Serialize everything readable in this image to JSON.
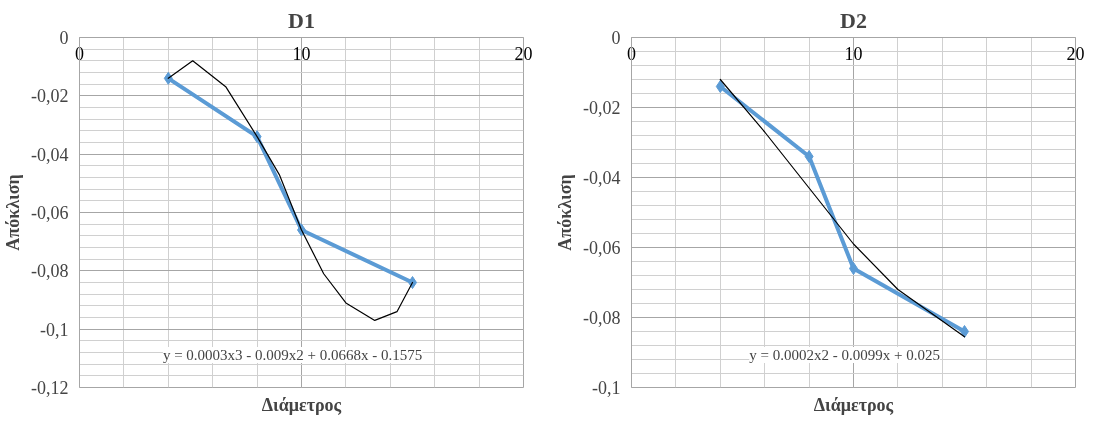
{
  "chart_data": [
    {
      "type": "line",
      "title": "D1",
      "xlabel": "Διάμετρος",
      "ylabel": "Απόκλιση",
      "xlim": [
        0,
        20
      ],
      "xticks": [
        0,
        10,
        20
      ],
      "ylim": [
        -0.12,
        0
      ],
      "yticks": [
        0,
        {
          "value": -0.02,
          "label": "-0,02"
        },
        {
          "value": -0.04,
          "label": "-0,04"
        },
        {
          "value": -0.06,
          "label": "-0,06"
        },
        {
          "value": -0.08,
          "label": "-0,08"
        },
        {
          "value": -0.1,
          "label": "-0,1"
        },
        {
          "value": -0.12,
          "label": "-0,12"
        }
      ],
      "grid": true,
      "series": [
        {
          "color": "#5b9bd5",
          "marker": "diamond",
          "x": [
            4,
            8,
            10,
            15
          ],
          "values": [
            -0.014,
            -0.034,
            -0.066,
            -0.084
          ]
        },
        {
          "color": "#000000",
          "marker": "none",
          "x": [
            4,
            5.1,
            6.6,
            8,
            9,
            10,
            11,
            12,
            13.3,
            14.3,
            15
          ],
          "values": [
            -0.014,
            -0.008,
            -0.017,
            -0.034,
            -0.047,
            -0.066,
            -0.081,
            -0.091,
            -0.097,
            -0.094,
            -0.084
          ]
        }
      ],
      "annotations": [
        "y = 0.0003x3 - 0.009x2 + 0.0668x - 0.1575"
      ]
    },
    {
      "type": "line",
      "title": "D2",
      "xlabel": "Διάμετρος",
      "ylabel": "Απόκλιση",
      "xlim": [
        0,
        20
      ],
      "xticks": [
        0,
        10,
        20
      ],
      "ylim": [
        -0.1,
        0
      ],
      "yticks": [
        0,
        {
          "value": -0.02,
          "label": "-0,02"
        },
        {
          "value": -0.04,
          "label": "-0,04"
        },
        {
          "value": -0.06,
          "label": "-0,06"
        },
        {
          "value": -0.08,
          "label": "-0,08"
        },
        {
          "value": -0.1,
          "label": "-0,1"
        }
      ],
      "grid": true,
      "series": [
        {
          "color": "#5b9bd5",
          "marker": "diamond",
          "x": [
            4,
            8,
            10,
            15
          ],
          "values": [
            -0.014,
            -0.034,
            -0.066,
            -0.084
          ]
        },
        {
          "color": "#000000",
          "marker": "none",
          "x": [
            4,
            6,
            8,
            10,
            12,
            15
          ],
          "values": [
            -0.012,
            -0.027,
            -0.043,
            -0.059,
            -0.072,
            -0.0855
          ]
        }
      ],
      "annotations": [
        "y = 0.0002x2 - 0.0099x + 0.025"
      ]
    }
  ]
}
